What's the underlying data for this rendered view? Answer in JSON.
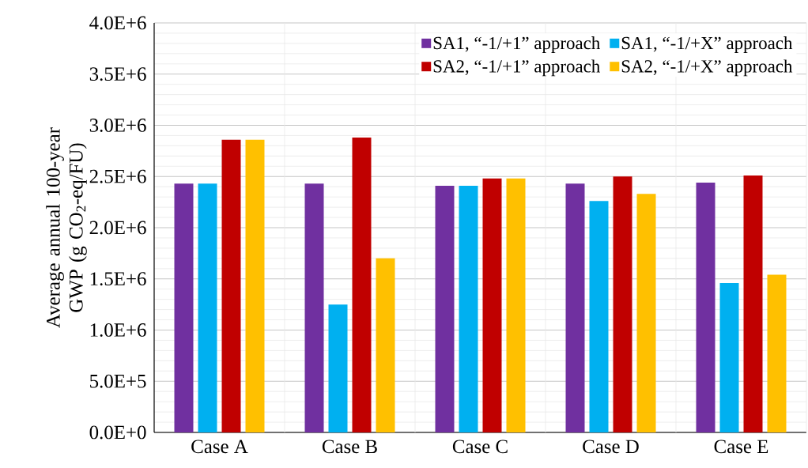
{
  "chart_data": {
    "type": "bar",
    "ylabel": "Average annual 100-year GWP (g CO$_{2}$-eq/FU)",
    "categories": [
      "Case A",
      "Case B",
      "Case C",
      "Case D",
      "Case E"
    ],
    "series": [
      {
        "name": "SA1, “-1/+1” approach",
        "color": "#7030a0",
        "values": [
          2430000,
          2430000,
          2410000,
          2430000,
          2440000
        ]
      },
      {
        "name": "SA1, “-1/+X” approach",
        "color": "#00b0f0",
        "values": [
          2430000,
          1250000,
          2410000,
          2260000,
          1460000
        ]
      },
      {
        "name": "SA2, “-1/+1” approach",
        "color": "#c00000",
        "values": [
          2860000,
          2880000,
          2480000,
          2500000,
          2510000
        ]
      },
      {
        "name": "SA2, “-1/+X” approach",
        "color": "#ffc000",
        "values": [
          2860000,
          1700000,
          2480000,
          2330000,
          1540000
        ]
      }
    ],
    "ylim": [
      0,
      4000000
    ],
    "yticks": [
      {
        "value": 0,
        "label": "0.0E+0"
      },
      {
        "value": 500000,
        "label": "5.0E+5"
      },
      {
        "value": 1000000,
        "label": "1.0E+6"
      },
      {
        "value": 1500000,
        "label": "1.5E+6"
      },
      {
        "value": 2000000,
        "label": "2.0E+6"
      },
      {
        "value": 2500000,
        "label": "2.5E+6"
      },
      {
        "value": 3000000,
        "label": "3.0E+6"
      },
      {
        "value": 3500000,
        "label": "3.5E+6"
      },
      {
        "value": 4000000,
        "label": "4.0E+6"
      }
    ],
    "grid": true,
    "legend": "top right"
  }
}
